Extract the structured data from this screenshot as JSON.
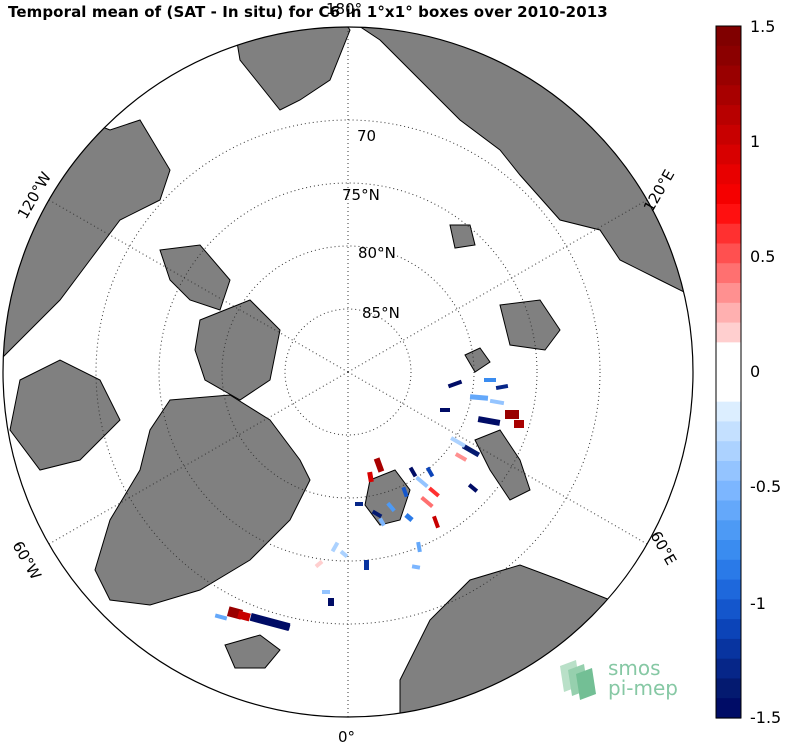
{
  "title": "Temporal mean of (SAT - In situ) for C6 in 1°x1° boxes over 2010-2013",
  "map": {
    "projection": "north-polar-stereographic",
    "latitude_labels": [
      "70",
      "75°N",
      "80°N",
      "85°N"
    ],
    "longitude_labels": {
      "top": "180°",
      "bottom": "0°",
      "upper_left": "120°W",
      "upper_right": "120°E",
      "lower_left": "60°W",
      "lower_right": "60°E"
    },
    "colors": {
      "land": "#808080",
      "ocean": "#ffffff",
      "grid": "#333333"
    }
  },
  "colorbar": {
    "min": -1.5,
    "max": 1.5,
    "tick_labels": [
      "1.5",
      "1",
      "0.5",
      "0",
      "-0.5",
      "-1",
      "-1.5"
    ],
    "colors_top_to_bottom": [
      "#800000",
      "#8b0000",
      "#990000",
      "#a80000",
      "#b80000",
      "#c80000",
      "#d80000",
      "#e80000",
      "#f50000",
      "#ff1010",
      "#ff3030",
      "#ff5050",
      "#ff7070",
      "#ff9090",
      "#ffb0b0",
      "#ffcfcf",
      "#ffffff",
      "#ffffff",
      "#ffffff",
      "#dceeff",
      "#c4e0ff",
      "#acd2ff",
      "#94c4ff",
      "#7cb6ff",
      "#64a8fa",
      "#4d9af5",
      "#3a8cf0",
      "#2a7ae8",
      "#1e68dc",
      "#1456cc",
      "#0c44b8",
      "#0834a0",
      "#062688",
      "#041a70",
      "#000c66"
    ]
  },
  "observations": [
    {
      "v": -1.5
    },
    {
      "v": -0.8
    },
    {
      "v": -1.3
    },
    {
      "v": -0.6
    },
    {
      "v": -0.4
    },
    {
      "v": -1.5
    },
    {
      "v": 1.3
    },
    {
      "v": 1.2
    },
    {
      "v": -1.5
    },
    {
      "v": -1.4
    },
    {
      "v": -0.3
    },
    {
      "v": 0.3
    },
    {
      "v": -1.1
    },
    {
      "v": -1.5
    },
    {
      "v": 1.2
    },
    {
      "v": 0.9
    },
    {
      "v": -0.4
    },
    {
      "v": 0.6
    },
    {
      "v": 0.4
    },
    {
      "v": -1.0
    },
    {
      "v": -0.7
    },
    {
      "v": -1.4
    },
    {
      "v": 1.0
    },
    {
      "v": -0.6
    },
    {
      "v": -0.3
    },
    {
      "v": -1.2
    },
    {
      "v": 0.2
    },
    {
      "v": -0.5
    },
    {
      "v": -0.4
    },
    {
      "v": -1.5
    },
    {
      "v": -0.3
    },
    {
      "v": -1.3
    },
    {
      "v": -0.5
    },
    {
      "v": -1.5
    },
    {
      "v": 1.3
    },
    {
      "v": 1.0
    },
    {
      "v": -1.5
    },
    {
      "v": -1.5
    },
    {
      "v": -0.6
    },
    {
      "v": -0.9
    }
  ],
  "logo": {
    "line1": "smos",
    "line2": "pi-mep"
  }
}
